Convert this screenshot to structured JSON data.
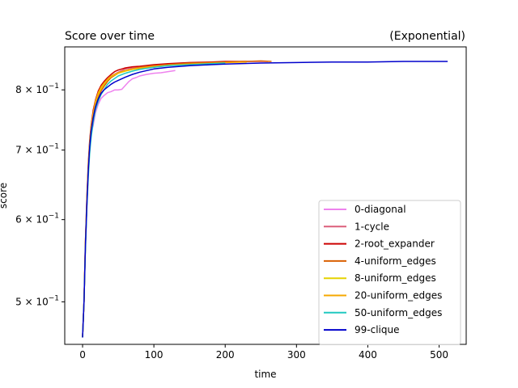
{
  "chart_data": {
    "type": "line",
    "title_left": "Score over time",
    "title_right": "(Exponential)",
    "xlabel": "time",
    "ylabel": "score",
    "xlim": [
      -25,
      538
    ],
    "ylim": [
      0.455,
      0.88
    ],
    "yscale": "log",
    "x_ticks": [
      0,
      100,
      200,
      300,
      400,
      500
    ],
    "y_ticks": [
      {
        "value": 0.5,
        "mantissa": "5",
        "label": "5 × 10^-1"
      },
      {
        "value": 0.6,
        "mantissa": "6",
        "label": "6 × 10^-1"
      },
      {
        "value": 0.7,
        "mantissa": "7",
        "label": "7 × 10^-1"
      },
      {
        "value": 0.8,
        "mantissa": "8",
        "label": "8 × 10^-1"
      }
    ],
    "grid": false,
    "legend_position": "lower-right",
    "series": [
      {
        "name": "0-diagonal",
        "color": "#ee82ee",
        "x": [
          0,
          2,
          4,
          6,
          8,
          10,
          12,
          15,
          18,
          22,
          26,
          30,
          35,
          40,
          45,
          50,
          55,
          60,
          65,
          70,
          75,
          80,
          90,
          100,
          110,
          120,
          130
        ],
        "y": [
          0.462,
          0.5,
          0.57,
          0.62,
          0.67,
          0.7,
          0.725,
          0.74,
          0.76,
          0.775,
          0.785,
          0.79,
          0.795,
          0.797,
          0.8,
          0.8,
          0.801,
          0.808,
          0.815,
          0.82,
          0.822,
          0.825,
          0.828,
          0.83,
          0.831,
          0.833,
          0.835
        ]
      },
      {
        "name": "1-cycle",
        "color": "#dc5f7a",
        "x": [
          0,
          2,
          4,
          6,
          8,
          10,
          12,
          15,
          18,
          22,
          26,
          30,
          35,
          40,
          50,
          60,
          70,
          80,
          100,
          120,
          150,
          180,
          200,
          230,
          260
        ],
        "y": [
          0.462,
          0.5,
          0.565,
          0.62,
          0.67,
          0.705,
          0.73,
          0.755,
          0.772,
          0.788,
          0.8,
          0.808,
          0.818,
          0.825,
          0.832,
          0.838,
          0.84,
          0.842,
          0.845,
          0.847,
          0.849,
          0.85,
          0.851,
          0.852,
          0.852
        ]
      },
      {
        "name": "2-root_expander",
        "color": "#cc0000",
        "x": [
          0,
          2,
          4,
          6,
          8,
          10,
          12,
          15,
          18,
          22,
          26,
          30,
          35,
          40,
          45,
          50,
          55,
          60,
          70,
          80,
          100,
          120,
          150,
          180,
          200,
          230
        ],
        "y": [
          0.462,
          0.5,
          0.57,
          0.63,
          0.68,
          0.715,
          0.74,
          0.765,
          0.782,
          0.798,
          0.808,
          0.815,
          0.822,
          0.828,
          0.833,
          0.836,
          0.838,
          0.84,
          0.842,
          0.843,
          0.846,
          0.848,
          0.85,
          0.851,
          0.852,
          0.852
        ]
      },
      {
        "name": "4-uniform_edges",
        "color": "#d95f02",
        "x": [
          0,
          2,
          4,
          6,
          8,
          10,
          12,
          15,
          18,
          22,
          26,
          30,
          35,
          40,
          50,
          60,
          70,
          80,
          100,
          120,
          150,
          180,
          200,
          230,
          250,
          265
        ],
        "y": [
          0.462,
          0.5,
          0.565,
          0.62,
          0.67,
          0.705,
          0.73,
          0.755,
          0.772,
          0.788,
          0.798,
          0.806,
          0.815,
          0.822,
          0.83,
          0.835,
          0.838,
          0.841,
          0.844,
          0.846,
          0.849,
          0.85,
          0.851,
          0.852,
          0.853,
          0.852
        ]
      },
      {
        "name": "8-uniform_edges",
        "color": "#e5d200",
        "x": [
          0,
          2,
          4,
          6,
          8,
          10,
          12,
          15,
          18,
          22,
          26,
          30,
          35,
          40,
          50,
          60,
          70,
          80,
          100,
          120,
          150,
          180,
          200
        ],
        "y": [
          0.462,
          0.5,
          0.57,
          0.625,
          0.675,
          0.71,
          0.735,
          0.76,
          0.778,
          0.792,
          0.802,
          0.81,
          0.818,
          0.824,
          0.83,
          0.834,
          0.837,
          0.839,
          0.842,
          0.845,
          0.847,
          0.848,
          0.849
        ]
      },
      {
        "name": "20-uniform_edges",
        "color": "#f5a800",
        "x": [
          0,
          2,
          4,
          6,
          8,
          10,
          12,
          15,
          18,
          22,
          26,
          30,
          35,
          40,
          50,
          60,
          70,
          80,
          100,
          120,
          150,
          180,
          200,
          230
        ],
        "y": [
          0.462,
          0.5,
          0.565,
          0.62,
          0.67,
          0.705,
          0.735,
          0.76,
          0.78,
          0.795,
          0.805,
          0.812,
          0.819,
          0.825,
          0.831,
          0.835,
          0.838,
          0.84,
          0.843,
          0.845,
          0.847,
          0.849,
          0.85,
          0.851
        ]
      },
      {
        "name": "50-uniform_edges",
        "color": "#20c8c0",
        "x": [
          0,
          2,
          4,
          6,
          8,
          10,
          12,
          15,
          18,
          22,
          26,
          30,
          35,
          40,
          50,
          60,
          70,
          80,
          100,
          120,
          150,
          180,
          200
        ],
        "y": [
          0.462,
          0.5,
          0.56,
          0.615,
          0.66,
          0.695,
          0.72,
          0.745,
          0.765,
          0.78,
          0.792,
          0.8,
          0.81,
          0.816,
          0.825,
          0.83,
          0.834,
          0.837,
          0.841,
          0.844,
          0.846,
          0.848,
          0.849
        ]
      },
      {
        "name": "99-clique",
        "color": "#0000cc",
        "x": [
          0,
          2,
          4,
          6,
          8,
          10,
          12,
          15,
          18,
          22,
          26,
          30,
          35,
          40,
          45,
          50,
          55,
          60,
          70,
          80,
          90,
          100,
          120,
          150,
          180,
          200,
          250,
          300,
          350,
          400,
          450,
          500,
          512
        ],
        "y": [
          0.462,
          0.5,
          0.565,
          0.62,
          0.67,
          0.705,
          0.73,
          0.752,
          0.77,
          0.784,
          0.794,
          0.8,
          0.805,
          0.81,
          0.814,
          0.817,
          0.82,
          0.823,
          0.828,
          0.832,
          0.835,
          0.838,
          0.841,
          0.844,
          0.846,
          0.847,
          0.849,
          0.85,
          0.851,
          0.851,
          0.852,
          0.852,
          0.852
        ]
      }
    ]
  }
}
